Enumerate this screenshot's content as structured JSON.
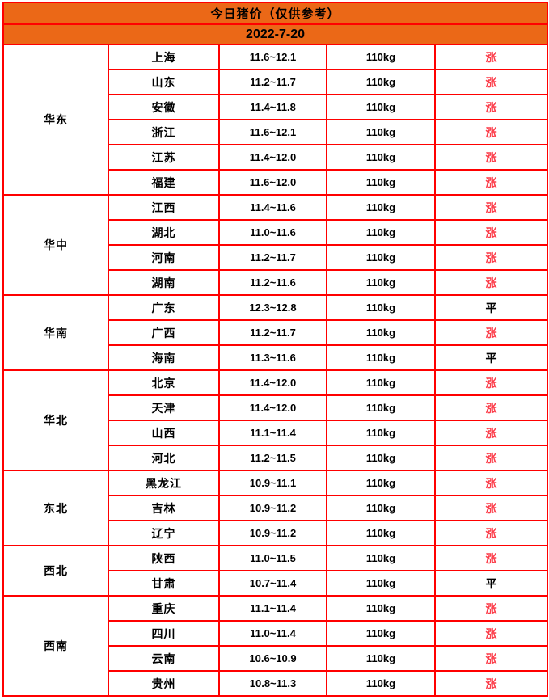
{
  "header": {
    "title": "今日猪价（仅供参考）",
    "date": "2022-7-20"
  },
  "colors": {
    "header_bg": "#EB6817",
    "border": "#FF0000",
    "title_text": "#8B0000",
    "trend_up": "#FC3D4A",
    "trend_flat": "#000000"
  },
  "chart_data": {
    "type": "table",
    "title": "今日猪价（仅供参考）",
    "date": "2022-7-20",
    "trend_up_label": "涨",
    "trend_flat_label": "平",
    "regions": [
      {
        "name": "华东",
        "rows": [
          {
            "province": "上海",
            "price": "11.6~12.1",
            "weight": "110kg",
            "trend": "涨"
          },
          {
            "province": "山东",
            "price": "11.2~11.7",
            "weight": "110kg",
            "trend": "涨"
          },
          {
            "province": "安徽",
            "price": "11.4~11.8",
            "weight": "110kg",
            "trend": "涨"
          },
          {
            "province": "浙江",
            "price": "11.6~12.1",
            "weight": "110kg",
            "trend": "涨"
          },
          {
            "province": "江苏",
            "price": "11.4~12.0",
            "weight": "110kg",
            "trend": "涨"
          },
          {
            "province": "福建",
            "price": "11.6~12.0",
            "weight": "110kg",
            "trend": "涨"
          }
        ]
      },
      {
        "name": "华中",
        "rows": [
          {
            "province": "江西",
            "price": "11.4~11.6",
            "weight": "110kg",
            "trend": "涨"
          },
          {
            "province": "湖北",
            "price": "11.0~11.6",
            "weight": "110kg",
            "trend": "涨"
          },
          {
            "province": "河南",
            "price": "11.2~11.7",
            "weight": "110kg",
            "trend": "涨"
          },
          {
            "province": "湖南",
            "price": "11.2~11.6",
            "weight": "110kg",
            "trend": "涨"
          }
        ]
      },
      {
        "name": "华南",
        "rows": [
          {
            "province": "广东",
            "price": "12.3~12.8",
            "weight": "110kg",
            "trend": "平"
          },
          {
            "province": "广西",
            "price": "11.2~11.7",
            "weight": "110kg",
            "trend": "涨"
          },
          {
            "province": "海南",
            "price": "11.3~11.6",
            "weight": "110kg",
            "trend": "平"
          }
        ]
      },
      {
        "name": "华北",
        "rows": [
          {
            "province": "北京",
            "price": "11.4~12.0",
            "weight": "110kg",
            "trend": "涨"
          },
          {
            "province": "天津",
            "price": "11.4~12.0",
            "weight": "110kg",
            "trend": "涨"
          },
          {
            "province": "山西",
            "price": "11.1~11.4",
            "weight": "110kg",
            "trend": "涨"
          },
          {
            "province": "河北",
            "price": "11.2~11.5",
            "weight": "110kg",
            "trend": "涨"
          }
        ]
      },
      {
        "name": "东北",
        "rows": [
          {
            "province": "黑龙江",
            "price": "10.9~11.1",
            "weight": "110kg",
            "trend": "涨"
          },
          {
            "province": "吉林",
            "price": "10.9~11.2",
            "weight": "110kg",
            "trend": "涨"
          },
          {
            "province": "辽宁",
            "price": "10.9~11.2",
            "weight": "110kg",
            "trend": "涨"
          }
        ]
      },
      {
        "name": "西北",
        "rows": [
          {
            "province": "陕西",
            "price": "11.0~11.5",
            "weight": "110kg",
            "trend": "涨"
          },
          {
            "province": "甘肃",
            "price": "10.7~11.4",
            "weight": "110kg",
            "trend": "平"
          }
        ]
      },
      {
        "name": "西南",
        "rows": [
          {
            "province": "重庆",
            "price": "11.1~11.4",
            "weight": "110kg",
            "trend": "涨"
          },
          {
            "province": "四川",
            "price": "11.0~11.4",
            "weight": "110kg",
            "trend": "涨"
          },
          {
            "province": "云南",
            "price": "10.6~10.9",
            "weight": "110kg",
            "trend": "涨"
          },
          {
            "province": "贵州",
            "price": "10.8~11.3",
            "weight": "110kg",
            "trend": "涨"
          }
        ]
      }
    ]
  }
}
